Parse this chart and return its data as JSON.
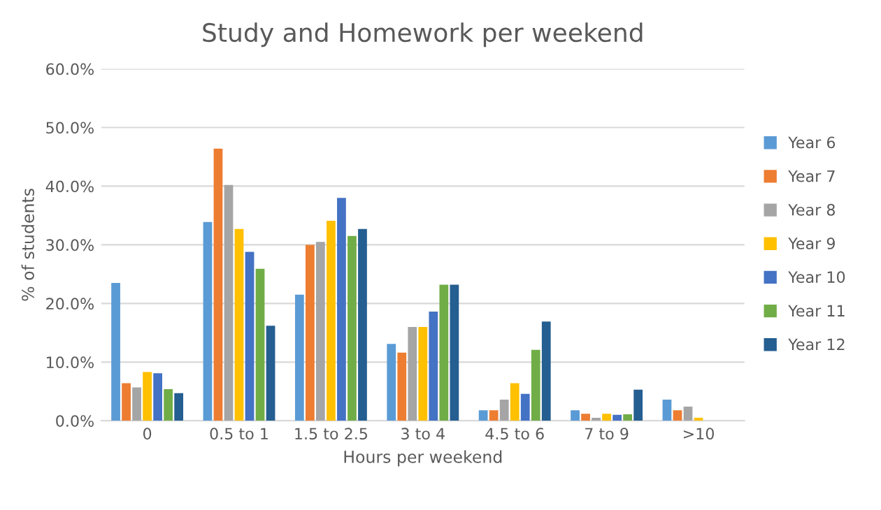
{
  "chart_data": {
    "type": "bar",
    "title": "Study and Homework per weekend",
    "xlabel": "Hours per weekend",
    "ylabel": "% of students",
    "categories": [
      "0",
      "0.5 to 1",
      "1.5 to 2.5",
      "3 to 4",
      "4.5 to 6",
      "7 to 9",
      ">10"
    ],
    "series": [
      {
        "name": "Year 6",
        "color": "#5b9bd5",
        "values": [
          23.5,
          33.9,
          21.5,
          13.1,
          1.8,
          1.8,
          3.6
        ]
      },
      {
        "name": "Year 7",
        "color": "#ed7d31",
        "values": [
          6.4,
          46.4,
          30.0,
          11.6,
          1.8,
          1.2,
          1.8
        ]
      },
      {
        "name": "Year 8",
        "color": "#a5a5a5",
        "values": [
          5.7,
          40.2,
          30.5,
          16.0,
          3.6,
          0.5,
          2.4
        ]
      },
      {
        "name": "Year 9",
        "color": "#ffc000",
        "values": [
          8.3,
          32.7,
          34.1,
          16.0,
          6.4,
          1.2,
          0.5
        ]
      },
      {
        "name": "Year 10",
        "color": "#4472c4",
        "values": [
          8.1,
          28.8,
          38.0,
          18.6,
          4.6,
          1.0,
          0
        ]
      },
      {
        "name": "Year 11",
        "color": "#70ad47",
        "values": [
          5.4,
          25.9,
          31.5,
          23.2,
          12.1,
          1.1,
          0
        ]
      },
      {
        "name": "Year 12",
        "color": "#255e91",
        "values": [
          4.7,
          16.2,
          32.7,
          23.2,
          16.9,
          5.3,
          0
        ]
      }
    ],
    "ylim": [
      0,
      60
    ],
    "yticks": [
      {
        "value": 0,
        "label": "0.0%"
      },
      {
        "value": 10,
        "label": "10.0%"
      },
      {
        "value": 20,
        "label": "20.0%"
      },
      {
        "value": 30,
        "label": "30.0%"
      },
      {
        "value": 40,
        "label": "40.0%"
      },
      {
        "value": 50,
        "label": "50.0%"
      },
      {
        "value": 60,
        "label": "60.0%"
      }
    ],
    "grid": "y",
    "legend": "right"
  }
}
